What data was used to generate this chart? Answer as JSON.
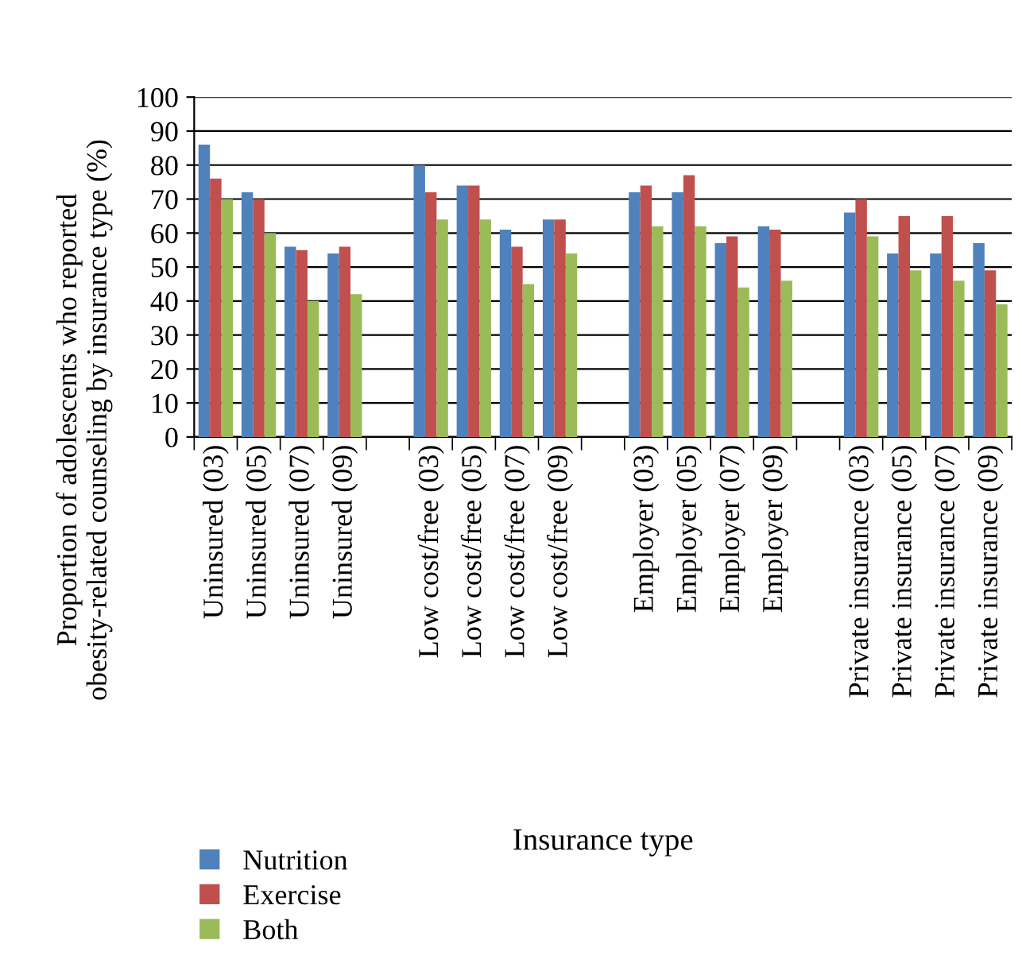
{
  "chart_data": {
    "type": "bar",
    "xlabel": "Insurance type",
    "ylabel": "Proportion of adolescents who reported\nobesity-related counseling by insurance type (%)",
    "categories": [
      "Uninsured (03)",
      "Uninsured (05)",
      "Uninsured (07)",
      "Uninsured (09)",
      null,
      "Low cost/free (03)",
      "Low cost/free (05)",
      "Low cost/free (07)",
      "Low cost/free (09)",
      null,
      "Employer (03)",
      "Employer (05)",
      "Employer (07)",
      "Employer (09)",
      null,
      "Private insurance (03)",
      "Private insurance (05)",
      "Private insurance (07)",
      "Private insurance (09)"
    ],
    "series": [
      {
        "name": "Nutrition",
        "color": "#4f81bd",
        "values": [
          86,
          72,
          56,
          54,
          null,
          80,
          74,
          61,
          64,
          null,
          72,
          72,
          57,
          62,
          null,
          66,
          54,
          54,
          57
        ]
      },
      {
        "name": "Exercise",
        "color": "#c0504d",
        "values": [
          76,
          70,
          55,
          56,
          null,
          72,
          74,
          56,
          64,
          null,
          74,
          77,
          59,
          61,
          null,
          70,
          65,
          65,
          49
        ]
      },
      {
        "name": "Both",
        "color": "#9bbb59",
        "values": [
          70,
          60,
          40,
          42,
          null,
          64,
          64,
          45,
          54,
          null,
          62,
          62,
          44,
          46,
          null,
          59,
          49,
          46,
          39
        ]
      }
    ],
    "ylim": [
      0,
      100
    ],
    "yticks": [
      0,
      10,
      20,
      30,
      40,
      50,
      60,
      70,
      80,
      90,
      100
    ],
    "grid": "y",
    "legend": "bottom left"
  }
}
